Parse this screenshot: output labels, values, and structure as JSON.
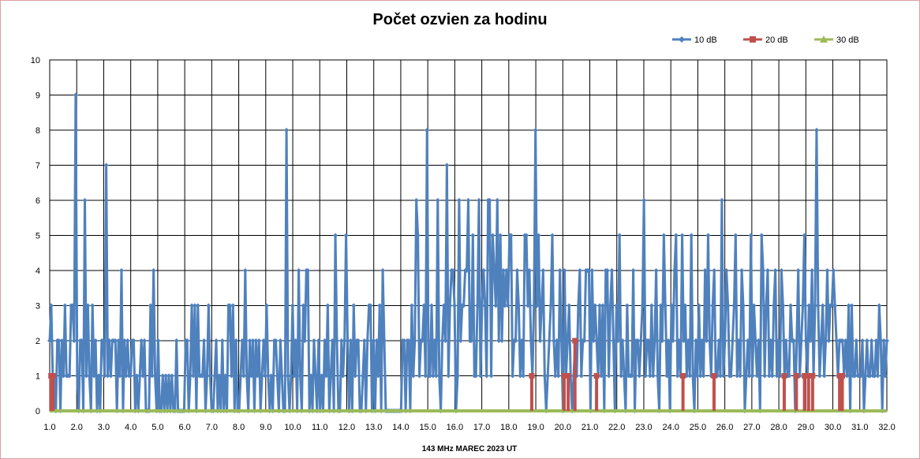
{
  "chart_data": {
    "type": "line",
    "title": "Počet ozvien za hodinu",
    "xlabel": "143 MHz MAREC  2023  UT",
    "ylabel": "",
    "xlim": [
      1.0,
      32.0
    ],
    "ylim": [
      0,
      10
    ],
    "x_ticks": [
      "1.0",
      "2.0",
      "3.0",
      "4.0",
      "5.0",
      "6.0",
      "7.0",
      "8.0",
      "9.0",
      "10.0",
      "11.0",
      "12.0",
      "13.0",
      "14.0",
      "15.0",
      "16.0",
      "17.0",
      "18.0",
      "19.0",
      "20.0",
      "21.0",
      "22.0",
      "23.0",
      "24.0",
      "25.0",
      "26.0",
      "27.0",
      "28.0",
      "29.0",
      "30.0",
      "31.0",
      "32.0"
    ],
    "y_ticks": [
      "0",
      "1",
      "2",
      "3",
      "4",
      "5",
      "6",
      "7",
      "8",
      "9",
      "10"
    ],
    "grid": true,
    "legend_position": "top-right",
    "series": [
      {
        "name": "10 dB",
        "color": "#4f81bd",
        "marker": "diamond",
        "values": [
          2,
          3,
          1,
          1,
          0,
          2,
          2,
          0,
          2,
          1,
          3,
          1,
          1,
          1,
          3,
          3,
          2,
          9,
          1,
          0,
          2,
          2,
          0,
          6,
          1,
          3,
          1,
          0,
          3,
          1,
          2,
          0,
          1,
          0,
          2,
          2,
          1,
          7,
          1,
          2,
          1,
          2,
          2,
          2,
          0,
          2,
          1,
          4,
          0,
          2,
          1,
          2,
          1,
          1,
          2,
          2,
          0,
          1,
          0,
          1,
          2,
          1,
          2,
          0,
          0,
          0,
          3,
          1,
          4,
          1,
          0,
          2,
          0,
          0,
          1,
          0,
          1,
          0,
          1,
          0,
          1,
          0,
          0,
          2,
          0,
          0,
          0,
          0,
          0,
          2,
          2,
          0,
          1,
          3,
          1,
          3,
          0,
          3,
          1,
          1,
          1,
          2,
          0,
          1,
          3,
          1,
          0,
          0,
          1,
          2,
          0,
          1,
          0,
          2,
          0,
          1,
          0,
          3,
          3,
          1,
          3,
          0,
          2,
          0,
          0,
          1,
          2,
          1,
          4,
          1,
          0,
          2,
          1,
          2,
          0,
          2,
          1,
          2,
          0,
          1,
          2,
          1,
          3,
          1,
          0,
          1,
          0,
          2,
          2,
          1,
          0,
          2,
          1,
          0,
          0,
          8,
          1,
          0,
          1,
          3,
          1,
          2,
          0,
          4,
          1,
          0,
          3,
          2,
          4,
          4,
          0,
          1,
          0,
          2,
          1,
          0,
          2,
          0,
          1,
          0,
          2,
          1,
          3,
          0,
          1,
          2,
          0,
          5,
          2,
          0,
          0,
          2,
          1,
          2,
          5,
          2,
          0,
          2,
          0,
          3,
          1,
          2,
          2,
          0,
          0,
          1,
          2,
          0,
          2,
          3,
          3,
          0,
          2,
          0,
          2,
          1,
          3,
          0,
          4,
          2,
          0,
          0,
          0,
          0,
          0,
          0,
          0,
          0,
          0,
          0,
          0,
          2,
          2,
          0,
          2,
          2,
          0,
          3,
          1,
          2,
          6,
          5,
          1,
          2,
          2,
          3,
          1,
          8,
          1,
          1,
          3,
          1,
          2,
          1,
          6,
          1,
          0,
          2,
          3,
          2,
          7,
          1,
          3,
          4,
          4,
          3,
          0,
          1,
          6,
          2,
          3,
          3,
          4,
          4,
          6,
          2,
          2,
          5,
          1,
          1,
          3,
          6,
          1,
          3,
          4,
          3,
          1,
          6,
          6,
          1,
          5,
          4,
          3,
          6,
          2,
          5,
          2,
          4,
          3,
          4,
          3,
          5,
          5,
          1,
          2,
          2,
          4,
          3,
          1,
          2,
          1,
          5,
          5,
          3,
          4,
          2,
          1,
          3,
          8,
          3,
          5,
          2,
          3,
          4,
          1,
          0,
          1,
          2,
          3,
          5,
          2,
          1,
          2,
          1,
          4,
          2,
          0,
          4,
          1,
          2,
          3,
          1,
          0,
          1,
          2,
          1,
          3,
          4,
          1,
          2,
          2,
          4,
          4,
          4,
          0,
          4,
          2,
          3,
          2,
          1,
          3,
          1,
          3,
          0,
          4,
          4,
          1,
          3,
          4,
          2,
          0,
          3,
          2,
          5,
          1,
          2,
          1,
          0,
          3,
          1,
          1,
          1,
          4,
          0,
          2,
          2,
          1,
          2,
          3,
          6,
          1,
          2,
          2,
          1,
          3,
          1,
          2,
          4,
          1,
          0,
          3,
          2,
          5,
          3,
          1,
          2,
          0,
          3,
          2,
          4,
          5,
          1,
          2,
          1,
          5,
          2,
          3,
          1,
          2,
          1,
          5,
          1,
          0,
          2,
          1,
          3,
          1,
          2,
          1,
          4,
          2,
          5,
          2,
          1,
          3,
          4,
          1,
          1,
          2,
          1,
          6,
          1,
          2,
          4,
          3,
          1,
          1,
          2,
          3,
          5,
          1,
          2,
          1,
          4,
          3,
          0,
          1,
          2,
          1,
          5,
          1,
          3,
          2,
          1,
          2,
          0,
          5,
          4,
          1,
          3,
          4,
          1,
          2,
          1,
          3,
          4,
          1,
          2,
          1,
          4,
          3,
          1,
          2,
          1,
          1,
          3,
          2,
          2,
          0,
          2,
          4,
          1,
          2,
          3,
          5,
          2,
          1,
          3,
          2,
          4,
          1,
          3,
          8,
          3,
          1,
          2,
          3,
          1,
          2,
          4,
          2,
          3,
          3,
          4,
          3,
          2,
          1,
          2,
          2,
          2,
          1,
          2,
          1,
          3,
          0,
          3,
          1,
          1,
          2,
          1,
          1,
          1,
          2,
          0,
          1,
          2,
          1,
          1,
          2,
          1,
          1,
          2,
          1,
          3,
          2,
          0,
          2,
          1,
          2
        ]
      },
      {
        "name": "20 dB",
        "color": "#c0504d",
        "marker": "square",
        "spikes": [
          {
            "x": 1.05,
            "value": 1
          },
          {
            "x": 1.12,
            "value": 1
          },
          {
            "x": 18.85,
            "value": 1
          },
          {
            "x": 20.05,
            "value": 1
          },
          {
            "x": 20.2,
            "value": 1
          },
          {
            "x": 20.45,
            "value": 2
          },
          {
            "x": 21.25,
            "value": 1
          },
          {
            "x": 24.45,
            "value": 1
          },
          {
            "x": 25.6,
            "value": 1
          },
          {
            "x": 28.2,
            "value": 1
          },
          {
            "x": 28.65,
            "value": 1
          },
          {
            "x": 28.95,
            "value": 1
          },
          {
            "x": 29.1,
            "value": 1
          },
          {
            "x": 29.25,
            "value": 1
          },
          {
            "x": 30.25,
            "value": 1
          },
          {
            "x": 30.35,
            "value": 1
          }
        ]
      },
      {
        "name": "30 dB",
        "color": "#9bbb59",
        "marker": "triangle",
        "constant_value": 0
      }
    ]
  }
}
